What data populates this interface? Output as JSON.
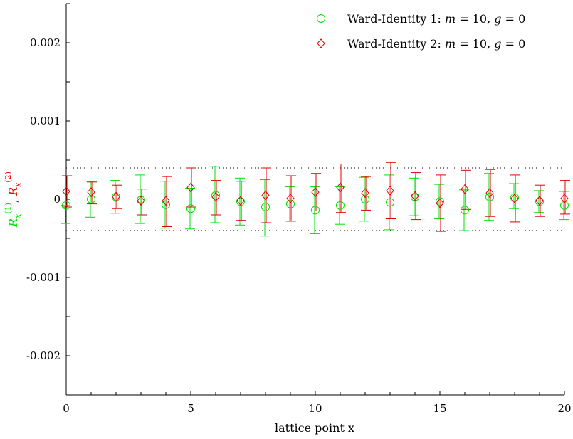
{
  "chart_data": {
    "type": "scatter",
    "title": "",
    "xlabel": "lattice point x",
    "ylabel": "R_x^(1), R_x^(2)",
    "ylabel_parts": [
      "R",
      "x",
      "(1)",
      ", ",
      "R",
      "x",
      "(2)"
    ],
    "xlim": [
      0,
      20
    ],
    "ylim": [
      -0.0025,
      0.0025
    ],
    "x_ticks": [
      0,
      5,
      10,
      15,
      20
    ],
    "x_tick_labels": [
      "0",
      "5",
      "10",
      "15",
      "20"
    ],
    "y_ticks": [
      -0.002,
      -0.001,
      0,
      0.001,
      0.002
    ],
    "y_tick_labels": [
      "-0.002",
      "-0.001",
      "0",
      "0.001",
      "0.002"
    ],
    "grid": false,
    "reference_lines": [
      0.0004,
      -0.0004
    ],
    "legend_position": "top-right",
    "x": [
      0,
      1,
      2,
      3,
      4,
      5,
      6,
      7,
      8,
      9,
      10,
      11,
      12,
      13,
      14,
      15,
      16,
      17,
      18,
      19,
      20
    ],
    "series": [
      {
        "name": "Ward-Identity 1: m = 10, g = 0",
        "name_parts": [
          "Ward-Identity 1: ",
          "m",
          " = 10, ",
          "g",
          " = 0"
        ],
        "marker": "circle",
        "color": "#00e000",
        "values": [
          -8e-05,
          0.0,
          3e-05,
          -1e-05,
          -7e-05,
          -0.00012,
          5e-05,
          -3e-05,
          -0.0001,
          -6e-05,
          -0.00014,
          -8e-05,
          0.0,
          -4e-05,
          3e-05,
          -3e-05,
          -0.00014,
          3e-05,
          2e-05,
          -3e-05,
          -8e-05
        ],
        "err_low": [
          0.00023,
          0.00023,
          0.00021,
          0.0003,
          0.0003,
          0.00026,
          0.00035,
          0.0003,
          0.00037,
          0.00022,
          0.0003,
          0.00024,
          0.00028,
          0.00035,
          0.00024,
          0.00022,
          0.00026,
          0.0003,
          0.00014,
          0.00014,
          0.00018
        ],
        "err_high": [
          0.0,
          0.00023,
          0.00021,
          0.00032,
          0.0003,
          0.00026,
          0.00037,
          0.0003,
          0.00035,
          0.00022,
          0.0003,
          0.00024,
          0.00028,
          0.00035,
          0.00024,
          0.00022,
          0.00026,
          0.0003,
          0.00018,
          0.00014,
          0.00018
        ]
      },
      {
        "name": "Ward-Identity 2: m = 10, g = 0",
        "name_parts": [
          "Ward-Identity 2: ",
          "m",
          " = 10, ",
          "g",
          " = 0"
        ],
        "marker": "diamond",
        "color": "#e00000",
        "values": [
          0.0001,
          9e-05,
          3e-05,
          -2e-05,
          -2e-05,
          0.00015,
          3e-05,
          -2e-05,
          5e-05,
          1e-05,
          9e-05,
          0.00015,
          8e-05,
          0.00011,
          4e-05,
          -5e-05,
          0.00013,
          8e-05,
          1e-05,
          -2e-05,
          1e-05
        ],
        "err_low": [
          0.0002,
          0.00015,
          0.00015,
          0.00018,
          0.00033,
          0.00025,
          0.00023,
          0.00025,
          0.00035,
          0.00029,
          0.00024,
          0.00032,
          0.00022,
          0.00036,
          0.0003,
          0.00036,
          0.00026,
          0.0003,
          0.0003,
          0.0002,
          0.0002
        ],
        "err_high": [
          0.0002,
          0.00013,
          0.00015,
          0.00015,
          0.00031,
          0.00025,
          0.00021,
          0.00025,
          0.00035,
          0.00029,
          0.00024,
          0.0003,
          0.00021,
          0.00036,
          0.0003,
          0.00036,
          0.00024,
          0.0003,
          0.0003,
          0.0002,
          0.00023
        ]
      }
    ]
  }
}
